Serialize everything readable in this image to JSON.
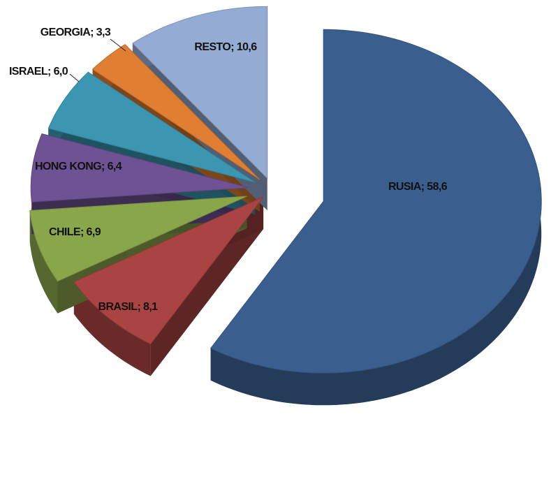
{
  "chart_data": {
    "type": "pie3d",
    "values": [
      58.6,
      8.1,
      6.9,
      6.4,
      6.0,
      3.3,
      10.6
    ],
    "value_labels": [
      "RUSIA; 58,6",
      "BRASIL; 8,1",
      "CHILE; 6,9",
      "HONG KONG; 6,4",
      "ISRAEL; 6,0",
      "GEORGIA; 3,3",
      "RESTO; 10,6"
    ],
    "colors": [
      "#3a5f8f",
      "#a94442",
      "#8aa64b",
      "#6f5294",
      "#3b97b1",
      "#e07f32",
      "#94abd3"
    ]
  }
}
